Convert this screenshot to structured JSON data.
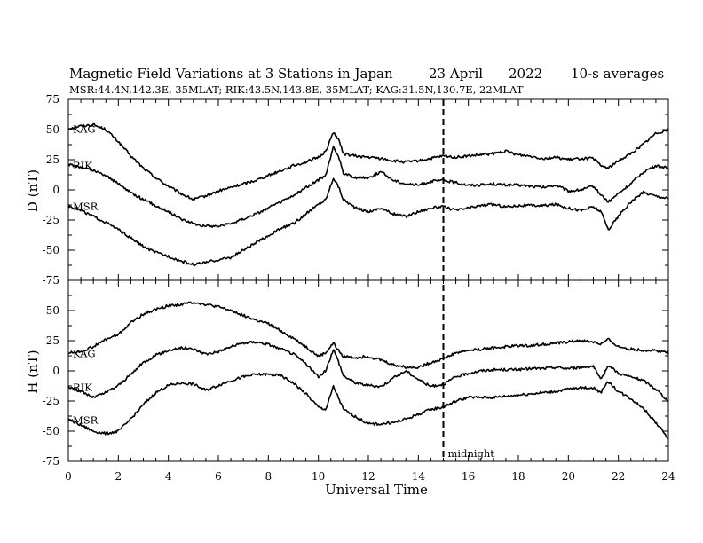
{
  "header": {
    "title": "Magnetic Field Variations at 3 Stations in Japan",
    "date": "23  April",
    "year": "2022",
    "averaging": "10-s averages",
    "subtitle": "MSR:44.4N,142.3E, 35MLAT;  RIK:43.5N,143.8E, 35MLAT;  KAG:31.5N,130.7E, 22MLAT"
  },
  "x_axis": {
    "label": "Universal Time",
    "range": [
      0,
      24
    ],
    "ticks": [
      "0",
      "2",
      "4",
      "6",
      "8",
      "10",
      "12",
      "14",
      "16",
      "18",
      "20",
      "22",
      "24"
    ]
  },
  "marker": {
    "x": 15,
    "label": "midnight"
  },
  "chart_data": [
    {
      "type": "line",
      "panel": "D",
      "ylabel": "D (nT)",
      "ylim": [
        -75,
        75
      ],
      "yticks": [
        "75",
        "50",
        "25",
        "0",
        "-25",
        "-50",
        "-75"
      ],
      "x": [
        0,
        0.5,
        1,
        1.5,
        2,
        2.5,
        3,
        3.5,
        4,
        4.5,
        5,
        5.5,
        6,
        6.5,
        7,
        7.5,
        8,
        8.5,
        9,
        9.5,
        10,
        10.3,
        10.6,
        10.8,
        11,
        11.5,
        12,
        12.5,
        13,
        13.5,
        14,
        14.5,
        15,
        15.5,
        16,
        16.5,
        17,
        17.5,
        18,
        18.5,
        19,
        19.5,
        20,
        20.5,
        21,
        21.3,
        21.6,
        22,
        22.5,
        23,
        23.5,
        24
      ],
      "series": [
        {
          "name": "KAG",
          "values": [
            51,
            53,
            54,
            50,
            40,
            28,
            18,
            10,
            3,
            -3,
            -8,
            -5,
            -1,
            2,
            5,
            8,
            12,
            16,
            20,
            23,
            27,
            32,
            48,
            42,
            30,
            28,
            27,
            26,
            24,
            23,
            24,
            26,
            28,
            27,
            28,
            29,
            30,
            32,
            29,
            28,
            26,
            27,
            25,
            26,
            26,
            20,
            18,
            24,
            30,
            38,
            47,
            50
          ]
        },
        {
          "name": "RIK",
          "values": [
            21,
            19,
            16,
            12,
            5,
            -2,
            -8,
            -13,
            -18,
            -24,
            -28,
            -30,
            -30,
            -28,
            -24,
            -20,
            -15,
            -10,
            -5,
            2,
            8,
            12,
            36,
            28,
            14,
            10,
            10,
            15,
            8,
            5,
            4,
            7,
            8,
            6,
            4,
            4,
            5,
            4,
            4,
            3,
            2,
            4,
            -1,
            0,
            3,
            -4,
            -10,
            -3,
            5,
            15,
            20,
            18
          ]
        },
        {
          "name": "MSR",
          "values": [
            -13,
            -17,
            -22,
            -27,
            -33,
            -40,
            -47,
            -52,
            -55,
            -59,
            -62,
            -60,
            -58,
            -56,
            -50,
            -44,
            -38,
            -32,
            -28,
            -20,
            -12,
            -8,
            10,
            3,
            -8,
            -15,
            -18,
            -15,
            -20,
            -22,
            -18,
            -15,
            -14,
            -17,
            -15,
            -13,
            -12,
            -14,
            -13,
            -13,
            -13,
            -12,
            -15,
            -17,
            -14,
            -18,
            -33,
            -22,
            -10,
            -2,
            -5,
            -7
          ]
        }
      ]
    },
    {
      "type": "line",
      "panel": "H",
      "ylabel": "H (nT)",
      "ylim": [
        -75,
        75
      ],
      "yticks": [
        "75",
        "50",
        "25",
        "0",
        "-25",
        "-50",
        "-75"
      ],
      "x": [
        0,
        0.5,
        1,
        1.5,
        2,
        2.5,
        3,
        3.5,
        4,
        4.5,
        5,
        5.5,
        6,
        6.5,
        7,
        7.5,
        8,
        8.5,
        9,
        9.5,
        10,
        10.3,
        10.6,
        10.8,
        11,
        11.5,
        12,
        12.5,
        13,
        13.5,
        14,
        14.5,
        15,
        15.5,
        16,
        16.5,
        17,
        17.5,
        18,
        18.5,
        19,
        19.5,
        20,
        20.5,
        21,
        21.3,
        21.6,
        22,
        22.5,
        23,
        23.5,
        24
      ],
      "series": [
        {
          "name": "KAG",
          "values": [
            15,
            16,
            20,
            26,
            30,
            40,
            47,
            51,
            54,
            55,
            57,
            55,
            53,
            50,
            46,
            42,
            39,
            33,
            27,
            20,
            12,
            15,
            23,
            17,
            12,
            11,
            12,
            9,
            5,
            3,
            3,
            7,
            10,
            15,
            17,
            18,
            19,
            20,
            21,
            21,
            22,
            23,
            24,
            25,
            24,
            22,
            26,
            20,
            18,
            17,
            17,
            15
          ]
        },
        {
          "name": "RIK",
          "values": [
            -13,
            -17,
            -22,
            -18,
            -12,
            -3,
            7,
            13,
            17,
            19,
            18,
            14,
            16,
            20,
            23,
            24,
            22,
            18,
            14,
            6,
            -5,
            0,
            18,
            8,
            -4,
            -10,
            -12,
            -13,
            -6,
            0,
            -7,
            -13,
            -11,
            -5,
            -2,
            0,
            1,
            1,
            1,
            2,
            2,
            3,
            2,
            3,
            4,
            -8,
            5,
            -2,
            -5,
            -8,
            -15,
            -25
          ]
        },
        {
          "name": "MSR",
          "values": [
            -40,
            -45,
            -50,
            -52,
            -50,
            -40,
            -28,
            -18,
            -12,
            -10,
            -11,
            -16,
            -12,
            -8,
            -5,
            -3,
            -3,
            -4,
            -10,
            -19,
            -30,
            -32,
            -13,
            -22,
            -32,
            -38,
            -44,
            -44,
            -43,
            -40,
            -36,
            -32,
            -30,
            -25,
            -22,
            -22,
            -22,
            -21,
            -20,
            -19,
            -18,
            -17,
            -15,
            -14,
            -14,
            -18,
            -9,
            -17,
            -23,
            -31,
            -43,
            -56
          ]
        }
      ]
    }
  ]
}
